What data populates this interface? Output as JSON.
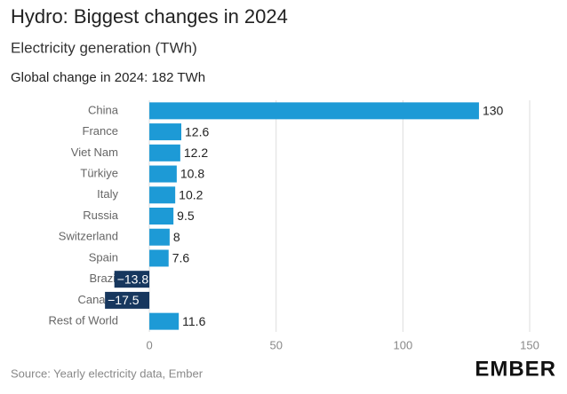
{
  "chart_data": {
    "type": "bar",
    "orientation": "horizontal",
    "title": "Hydro: Biggest changes in 2024",
    "subtitle": "Electricity generation (TWh)",
    "note": "Global change in 2024: 182 TWh",
    "categories": [
      "China",
      "France",
      "Viet Nam",
      "Türkiye",
      "Italy",
      "Russia",
      "Switzerland",
      "Spain",
      "Brazil",
      "Canada",
      "Rest of World"
    ],
    "values": [
      130,
      12.6,
      12.2,
      10.8,
      10.2,
      9.5,
      8,
      7.6,
      -13.8,
      -17.5,
      11.6
    ],
    "value_labels": [
      "130",
      "12.6",
      "12.2",
      "10.8",
      "10.2",
      "9.5",
      "8",
      "7.6",
      "−13.8",
      "−17.5",
      "11.6"
    ],
    "color": "#1d9ad6",
    "negative_color": "#17375e",
    "xlim": [
      -20,
      150
    ],
    "xticks": [
      0,
      50,
      100,
      150
    ],
    "grid": true,
    "source": "Source: Yearly electricity data, Ember",
    "logo": "EMBER"
  }
}
